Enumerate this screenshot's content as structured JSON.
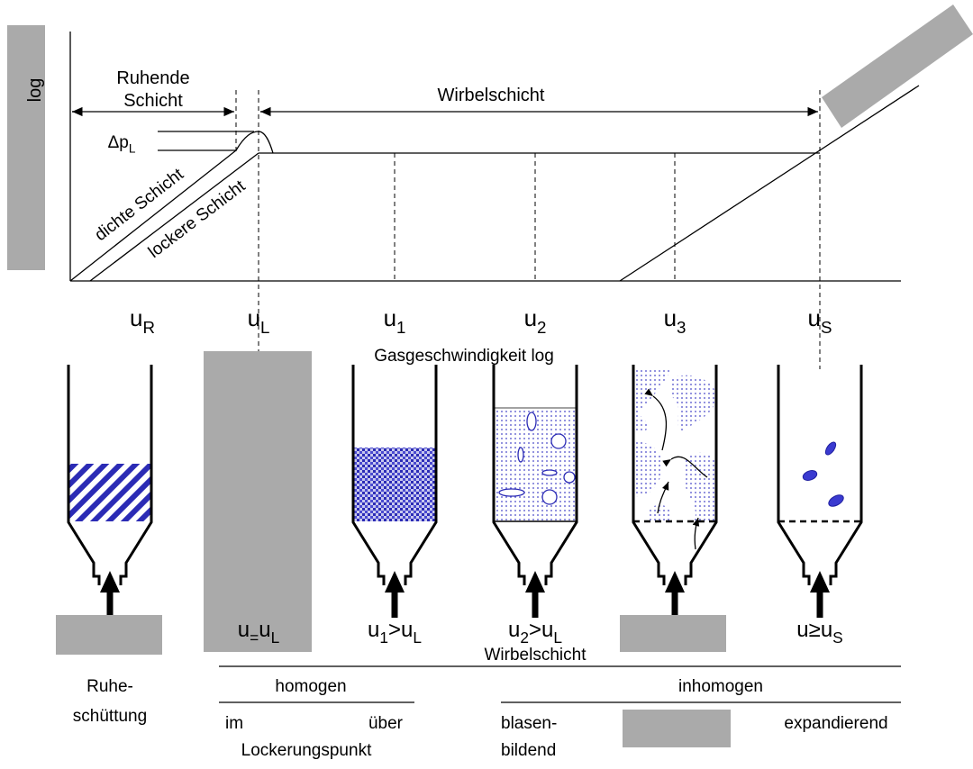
{
  "axis": {
    "y_label": "log",
    "x_label": "Gasgeschwindigkeit log"
  },
  "regions": {
    "ruhende_schicht": [
      "Ruhende",
      "Schicht"
    ],
    "wirbelschicht": "Wirbelschicht"
  },
  "delta_p": [
    {
      "t": "Δp"
    },
    {
      "t": "L",
      "sub": true
    }
  ],
  "lines": {
    "dichte": "dichte Schicht",
    "lockere": "lockere Schicht"
  },
  "velocities": [
    [
      {
        "t": "u"
      },
      {
        "t": "R",
        "sub": true
      }
    ],
    [
      {
        "t": "u"
      },
      {
        "t": "L",
        "sub": true
      }
    ],
    [
      {
        "t": "u"
      },
      {
        "t": "1",
        "sub": true
      }
    ],
    [
      {
        "t": "u"
      },
      {
        "t": "2",
        "sub": true
      }
    ],
    [
      {
        "t": "u"
      },
      {
        "t": "3",
        "sub": true
      }
    ],
    [
      {
        "t": "u"
      },
      {
        "t": "S",
        "sub": true
      }
    ]
  ],
  "vessel_labels": [
    [
      {
        "t": "u"
      },
      {
        "t": "=",
        "sub": true
      },
      {
        "t": "u"
      },
      {
        "t": "L",
        "sub": true
      }
    ],
    [
      {
        "t": "u"
      },
      {
        "t": "1",
        "sub": true
      },
      {
        "t": ">u"
      },
      {
        "t": "L",
        "sub": true
      }
    ],
    [
      {
        "t": "u"
      },
      {
        "t": "2",
        "sub": true
      },
      {
        "t": ">u"
      },
      {
        "t": "L",
        "sub": true
      }
    ],
    [
      {
        "t": "u≥u"
      },
      {
        "t": "S",
        "sub": true
      }
    ]
  ],
  "wirbelschicht_note": "Wirbelschicht",
  "classes": {
    "ruhe": [
      "Ruhe-",
      "schüttung"
    ],
    "homogen": {
      "title": "homogen",
      "im": "im",
      "ueber": "über",
      "punkt": "Lockerungspunkt"
    },
    "inhomogen": {
      "title": "inhomogen",
      "blasen": [
        "blasen-",
        "bildend"
      ],
      "expandierend": "expandierend"
    }
  }
}
